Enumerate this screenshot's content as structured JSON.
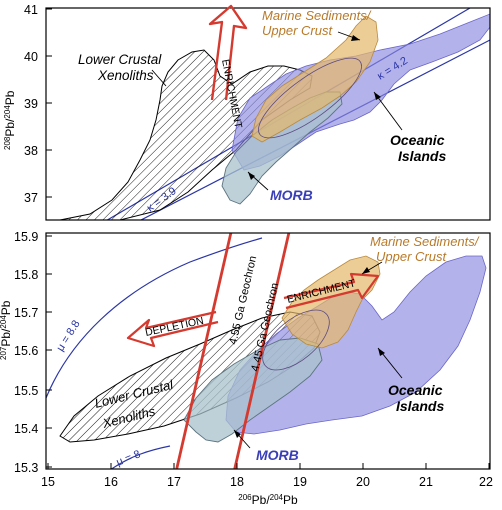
{
  "labels": {
    "top": {
      "y_axis_text": "Pb/",
      "y_axis_sup1": "208",
      "y_axis_sup2": "204",
      "y_axis_end": "Pb",
      "y_ticks": [
        "41",
        "40",
        "39",
        "38",
        "37"
      ],
      "lower_crustal": [
        "Lower Crustal",
        "Xenoliths"
      ],
      "marine": [
        "Marine Sediments/",
        "Upper Crust"
      ],
      "oceanic": [
        "Oceanic",
        "Islands"
      ],
      "morb": "MORB",
      "enrichment": "ENRICHMENT",
      "kappa_42": "κ = 4.2",
      "kappa_39": "κ = 3.9"
    },
    "bottom": {
      "y_axis_sup1": "207",
      "y_axis_text": "Pb/",
      "y_axis_sup2": "204",
      "y_axis_end": "Pb",
      "y_ticks": [
        "15.9",
        "15.8",
        "15.7",
        "15.6",
        "15.5",
        "15.4",
        "15.3"
      ],
      "x_ticks": [
        "15",
        "16",
        "17",
        "18",
        "19",
        "20",
        "21",
        "22"
      ],
      "x_axis_sup1": "206",
      "x_axis_text": "Pb/",
      "x_axis_sup2": "204",
      "x_axis_end": "Pb",
      "geochron_455": "4.55 Ga Geochron",
      "geochron_445": "4.45 Ga Geochron",
      "mu_88": "μ = 8.8",
      "mu_8": "μ = 8",
      "depletion": "DEPLETION",
      "enrichment": "ENRICHMENT",
      "marine": [
        "Marine Sediments/",
        "Upper Crust"
      ],
      "oceanic": [
        "Oceanic",
        "Islands"
      ],
      "lower_crustal": [
        "Lower Crustal",
        "Xenoliths"
      ],
      "morb": "MORB"
    }
  },
  "colors": {
    "oceanic": "#8c88e0",
    "marine": "#e6b86a",
    "morb": "#a8c2cc",
    "arrow_red": "#d43a2f",
    "curve_blue": "#2b36a6",
    "morb_label": "#3a3fb8",
    "marine_label": "#b87a2a"
  }
}
